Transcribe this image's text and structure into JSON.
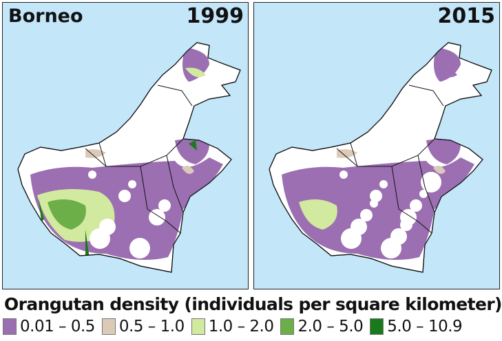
{
  "region_label": "Borneo",
  "panels": [
    {
      "year": "1999"
    },
    {
      "year": "2015"
    }
  ],
  "legend": {
    "title": "Orangutan density (individuals per square kilometer)",
    "items": [
      {
        "label": "0.01 – 0.5",
        "color": "#9b6fb1"
      },
      {
        "label": "0.5 – 1.0",
        "color": "#dccab8"
      },
      {
        "label": "1.0 – 2.0",
        "color": "#d2e9a0"
      },
      {
        "label": "2.0 – 5.0",
        "color": "#6cae47"
      },
      {
        "label": "5.0 – 10.9",
        "color": "#197a1c"
      }
    ]
  },
  "colors": {
    "sea": "#c3e6f9",
    "land": "#ffffff"
  }
}
